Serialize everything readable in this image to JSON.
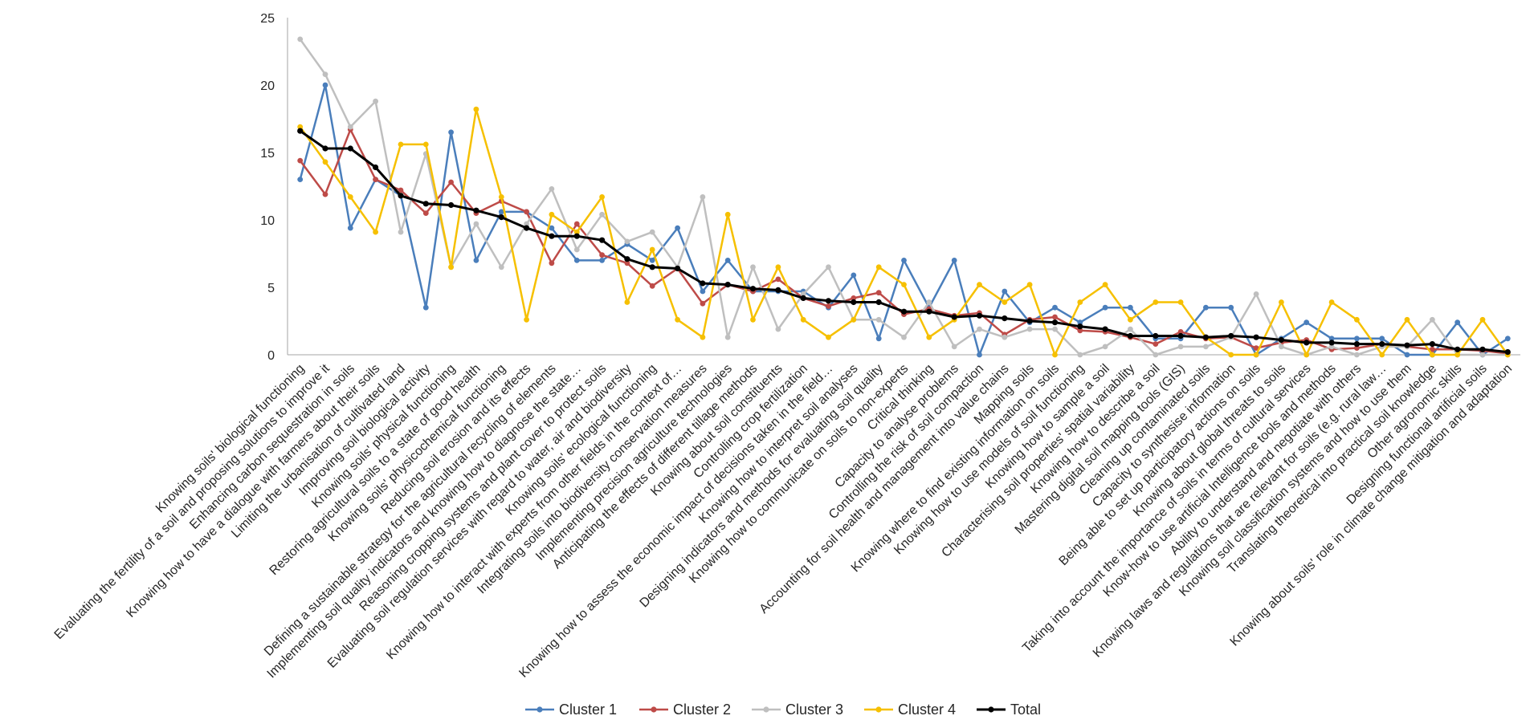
{
  "chart_data": {
    "type": "line",
    "ylim": [
      0,
      25
    ],
    "yticks": [
      0,
      5,
      10,
      15,
      20,
      25
    ],
    "grid": false,
    "legend_position": "bottom",
    "categories": [
      "Knowing soils' biological functioning",
      "Evaluating the fertility of a soil and proposing solutions to improve it",
      "Enhancing carbon sequestration in soils",
      "Knowing how to have a dialogue with farmers about their soils",
      "Limiting the urbanisation of cultivated land",
      "Improving soil biological activity",
      "Knowing soils' physical functioning",
      "Restoring agricultural soils to a state of good health",
      "Knowing soils' physicochemical functioning",
      "Reducing soil erosion and its effects",
      "Defining a sustainable strategy for the agricultural recycling of elements",
      "Implementing soil quality indicators and knowing how to diagnose the state…",
      "Reasoning cropping systems and plant cover to protect soils",
      "Evaluating soil regulation services with regard to water, air and biodiversity",
      "Knowing soils' ecological functioning",
      "Knowing how to interact with experts from other fields in the context of…",
      "Integrating soils into biodiversity conservation measures",
      "Implementing precision agriculture technologies",
      "Anticipating the effects of different tillage methods",
      "Knowing about soil constituents",
      "Controlling crop fertilization",
      "Knowing how to assess the economic impact of decisions taken in the field…",
      "Knowing how to interpret soil analyses",
      "Designing indicators and methods for evaluating soil quality",
      "Knowing how to communicate on soils to non-experts",
      "Critical thinking",
      "Capacity to analyse problems",
      "Controlling the risk of soil compaction",
      "Accounting for soil health and management into value chains",
      "Mapping soils",
      "Knowing where to find existing information on soils",
      "Knowing how to use models of soil functioning",
      "Knowing how to sample a soil",
      "Characterising soil properties' spatial variability",
      "Knowing how to describe a soil",
      "Mastering digital soil mapping tools (GIS)",
      "Cleaning up contaminated soils",
      "Capacity to synthesise information",
      "Being able to set up participatory actions on soils",
      "Knowing about global threats to soils",
      "Taking into account the importance of soils in terms of cultural services",
      "Know-how to use artificial Intelligence tools and methods",
      "Ability to understand and negotiate with others",
      "Knowing laws and regulations that are relevant for soils (e.g. rural law…",
      "Knowing soil classification systems and how to use them",
      "Translating theoretical into practical soil knowledge",
      "Other agronomic skills",
      "Designing functional artificial soils",
      "Knowing about soils' role in climate change mitigation and adaptation"
    ],
    "series": [
      {
        "name": "Cluster 1",
        "color": "#4a7ebb",
        "values": [
          13.0,
          20.0,
          9.4,
          13.0,
          11.8,
          3.5,
          16.5,
          7.0,
          10.6,
          10.6,
          9.4,
          7.0,
          7.0,
          8.2,
          7.0,
          9.4,
          4.7,
          7.0,
          4.7,
          4.7,
          4.7,
          3.5,
          5.9,
          1.2,
          7.0,
          3.5,
          7.0,
          0.0,
          4.7,
          2.4,
          3.5,
          2.4,
          3.5,
          3.5,
          1.2,
          1.2,
          3.5,
          3.5,
          0.0,
          1.2,
          2.4,
          1.2,
          1.2,
          1.2,
          0.0,
          0.0,
          2.4,
          0.0,
          1.2
        ]
      },
      {
        "name": "Cluster 2",
        "color": "#be4b48",
        "values": [
          14.4,
          11.9,
          16.7,
          13.0,
          12.2,
          10.5,
          12.8,
          10.5,
          11.4,
          10.6,
          6.8,
          9.7,
          7.4,
          6.8,
          5.1,
          6.4,
          3.8,
          5.2,
          4.7,
          5.6,
          4.2,
          3.6,
          4.2,
          4.6,
          3.0,
          3.4,
          2.9,
          3.1,
          1.5,
          2.6,
          2.8,
          1.8,
          1.7,
          1.3,
          0.8,
          1.7,
          1.2,
          1.3,
          0.5,
          0.9,
          1.1,
          0.4,
          0.5,
          0.8,
          0.6,
          0.4,
          0.4,
          0.3,
          0.1
        ]
      },
      {
        "name": "Cluster 3",
        "color": "#bfbfbf",
        "values": [
          23.4,
          20.8,
          16.9,
          18.8,
          9.1,
          14.9,
          6.5,
          9.7,
          6.5,
          9.7,
          12.3,
          7.8,
          10.4,
          8.4,
          9.1,
          6.5,
          11.7,
          1.3,
          6.5,
          1.9,
          4.5,
          6.5,
          2.6,
          2.6,
          1.3,
          3.9,
          0.6,
          1.9,
          1.3,
          1.9,
          1.9,
          0.0,
          0.6,
          1.9,
          0.0,
          0.6,
          0.6,
          1.3,
          4.5,
          0.6,
          0.0,
          0.6,
          0.0,
          0.6,
          0.6,
          2.6,
          0.0,
          0.0,
          0.0
        ]
      },
      {
        "name": "Cluster 4",
        "color": "#f6c000",
        "values": [
          16.9,
          14.3,
          11.7,
          9.1,
          15.6,
          15.6,
          6.5,
          18.2,
          11.7,
          2.6,
          10.4,
          9.1,
          11.7,
          3.9,
          7.8,
          2.6,
          1.3,
          10.4,
          2.6,
          6.5,
          2.6,
          1.3,
          2.6,
          6.5,
          5.2,
          1.3,
          2.6,
          5.2,
          3.9,
          5.2,
          0.0,
          3.9,
          5.2,
          2.6,
          3.9,
          3.9,
          1.3,
          0.0,
          0.0,
          3.9,
          0.0,
          3.9,
          2.6,
          0.0,
          2.6,
          0.0,
          0.0,
          2.6,
          0.0
        ]
      },
      {
        "name": "Total",
        "color": "#000000",
        "values": [
          16.6,
          15.3,
          15.3,
          13.9,
          11.8,
          11.2,
          11.1,
          10.7,
          10.2,
          9.4,
          8.8,
          8.8,
          8.5,
          7.1,
          6.5,
          6.4,
          5.3,
          5.2,
          4.9,
          4.8,
          4.2,
          4.0,
          3.9,
          3.9,
          3.2,
          3.2,
          2.8,
          2.9,
          2.7,
          2.5,
          2.4,
          2.1,
          1.9,
          1.4,
          1.4,
          1.4,
          1.3,
          1.4,
          1.3,
          1.1,
          0.9,
          0.9,
          0.8,
          0.8,
          0.7,
          0.8,
          0.4,
          0.4,
          0.2
        ]
      }
    ]
  }
}
